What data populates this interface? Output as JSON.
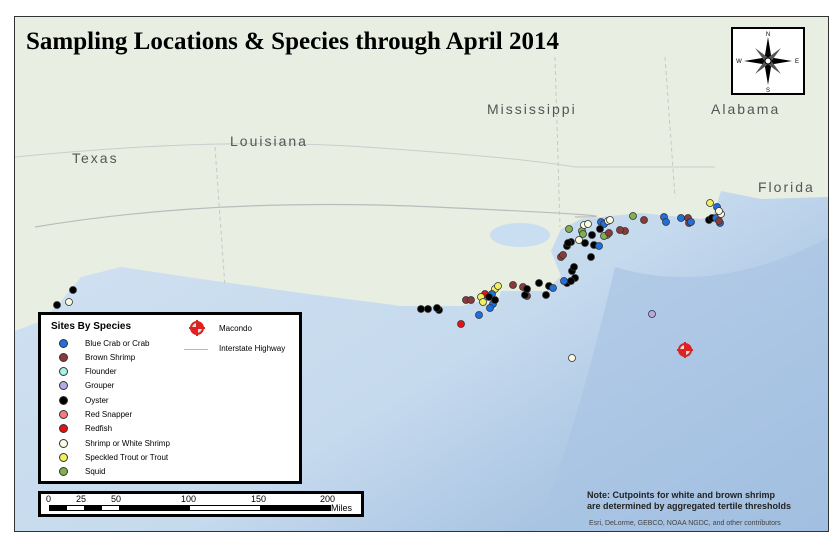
{
  "title": "Sampling Locations & Species through April 2014",
  "states": [
    "Texas",
    "Louisiana",
    "Mississippi",
    "Alabama",
    "Florida"
  ],
  "compass": {
    "n": "N",
    "s": "S",
    "e": "E",
    "w": "W"
  },
  "legend": {
    "heading": "Sites By Species",
    "items": [
      {
        "label": "Blue Crab or Crab",
        "color": "#1f6fe0"
      },
      {
        "label": "Brown Shrimp",
        "color": "#8b3a3a"
      },
      {
        "label": "Flounder",
        "color": "#a8f0e8"
      },
      {
        "label": "Grouper",
        "color": "#b8a8e8"
      },
      {
        "label": "Oyster",
        "color": "#000000"
      },
      {
        "label": "Red Snapper",
        "color": "#f08080"
      },
      {
        "label": "Redfish",
        "color": "#e81010"
      },
      {
        "label": "Shrimp or White Shrimp",
        "color": "#fafae0"
      },
      {
        "label": "Speckled Trout or Trout",
        "color": "#f0f060"
      },
      {
        "label": "Squid",
        "color": "#80b050"
      }
    ],
    "macondo": "Macondo",
    "highway": "Interstate Highway"
  },
  "scale": {
    "ticks": [
      "0",
      "25",
      "50",
      "100",
      "150",
      "200"
    ],
    "unit": "Miles"
  },
  "note": [
    "Note: Cutpoints for white and brown shrimp",
    "are determined by aggregated tertile thresholds"
  ],
  "credit": "Esri, DeLorme, GEBCO, NOAA NGDC, and other contributors"
}
